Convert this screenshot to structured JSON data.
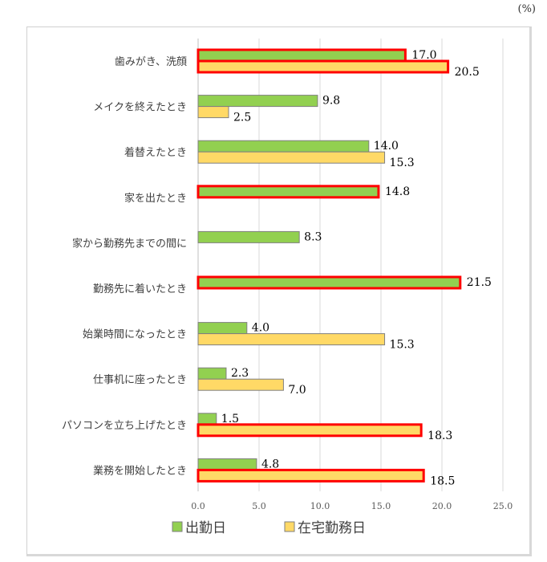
{
  "chart_data": {
    "type": "bar",
    "orientation": "horizontal",
    "unit_label": "(%)",
    "categories": [
      "歯みがき、洗顔",
      "メイクを終えたとき",
      "着替えたとき",
      "家を出たとき",
      "家から勤務先までの間に",
      "勤務先に着いたとき",
      "始業時間になったとき",
      "仕事机に座ったとき",
      "パソコンを立ち上げたとき",
      "業務を開始したとき"
    ],
    "series": [
      {
        "name": "出勤日",
        "color": "#92d050",
        "values": [
          17.0,
          9.8,
          14.0,
          14.8,
          8.3,
          21.5,
          4.0,
          2.3,
          1.5,
          4.8
        ],
        "highlighted": [
          true,
          false,
          false,
          true,
          false,
          true,
          false,
          false,
          false,
          false
        ]
      },
      {
        "name": "在宅勤務日",
        "color": "#ffd966",
        "values": [
          20.5,
          2.5,
          15.3,
          null,
          null,
          null,
          15.3,
          7.0,
          18.3,
          18.5
        ],
        "highlighted": [
          true,
          false,
          false,
          false,
          false,
          false,
          false,
          false,
          true,
          true
        ]
      }
    ],
    "xlim": [
      0,
      25
    ],
    "xticks": [
      "0.0",
      "5.0",
      "10.0",
      "15.0",
      "20.0",
      "25.0"
    ],
    "highlight_color": "#ff0000",
    "grid": true,
    "legend_position": "bottom"
  }
}
